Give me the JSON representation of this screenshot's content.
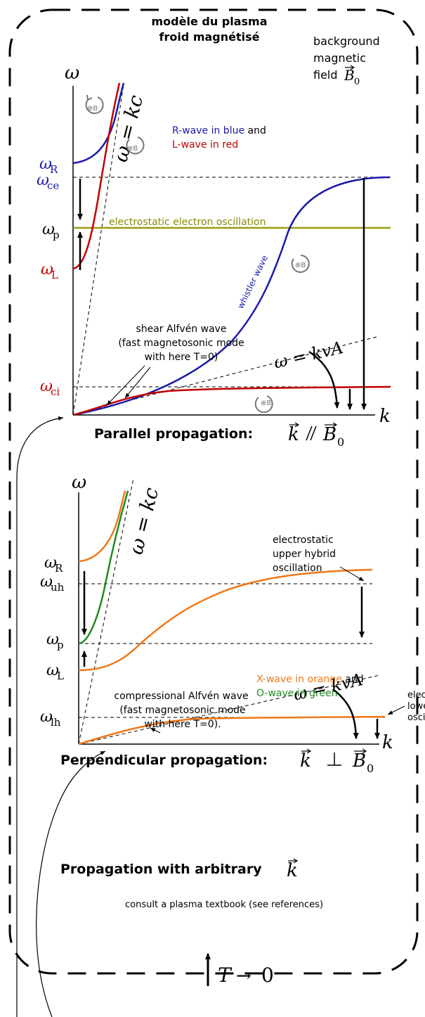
{
  "title_line1": "modèle du plasma",
  "title_line2": "froid magnétisé",
  "background_field": {
    "line1": "background",
    "line2": "magnetic",
    "line3": "field",
    "symbol": "B⃗0"
  },
  "top": {
    "axis_y": "ω",
    "axis_x": "k",
    "kc_line": "ω = kc",
    "legend_r": "R-wave in blue",
    "legend_and": " and",
    "legend_l": "L-wave in red",
    "label_wR": "ωR",
    "label_wce": "ωce",
    "label_wp": "ωp",
    "label_wL": "ωL",
    "label_wci": "ωci",
    "electrostatic": "electrostatic electron oscillation",
    "whistler": "whistler wave",
    "alfven_1": "shear Alfvén wave",
    "alfven_2": "(fast magnetosonic mode",
    "alfven_3": "with here T=0)",
    "kva": "ω = kvA",
    "caption_text": "Parallel propagation:",
    "caption_math": "k ∥ B0"
  },
  "bottom": {
    "axis_y": "ω",
    "axis_x": "k",
    "kc_line": "ω = kc",
    "label_wR": "ωR",
    "label_wuh": "ωuh",
    "label_wp": "ωp",
    "label_wL": "ωL",
    "label_wlh": "ωlh",
    "uh_1": "electrostatic",
    "uh_2": "upper hybrid",
    "uh_3": "oscillation",
    "legend_x": "X-wave in orange",
    "legend_and": " and",
    "legend_o": "O-wave in green",
    "alfven_1": "compressional Alfvén wave",
    "alfven_2": "(fast magnetosonic mode",
    "alfven_3": "with here T=0).",
    "kva": "ω = kvA",
    "lh_1": "elec",
    "lh_2": "lowe",
    "lh_3": "osci",
    "caption_text": "Perpendicular propagation:",
    "caption_math": "k ⊥ B0"
  },
  "arbitrary": {
    "title": "Propagation with arbitrary",
    "symbol": "k",
    "consult": "consult a plasma textbook (see references)"
  },
  "limit_label": "T → 0",
  "colors": {
    "r_wave": "#1a1aa8",
    "l_wave": "#c00000",
    "x_wave": "#f07818",
    "o_wave": "#1f8a1f",
    "electrostatic": "#9a9a10"
  }
}
